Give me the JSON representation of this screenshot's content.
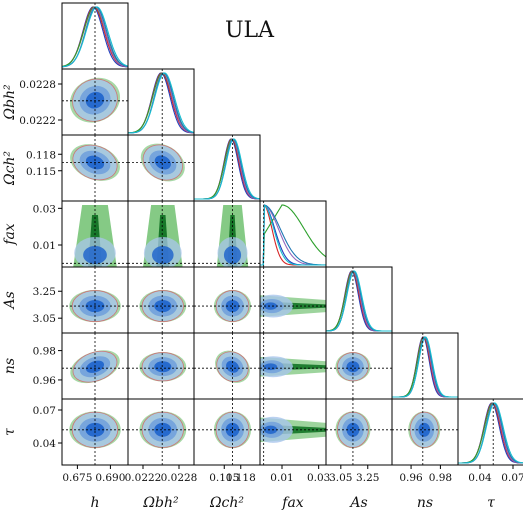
{
  "chart_data": {
    "type": "corner",
    "title": "ULA",
    "parameters": [
      {
        "key": "h",
        "label": "h",
        "range": [
          0.668,
          0.698
        ],
        "ticks": [
          {
            "v": 0.675,
            "t": "0.675"
          },
          {
            "v": 0.69,
            "t": "0.690"
          }
        ],
        "truth": 0.683,
        "mean": 0.683,
        "sd": 0.0045
      },
      {
        "key": "ombh2",
        "label": "Ωbh²",
        "range": [
          0.02195,
          0.02305
        ],
        "ticks": [
          {
            "v": 0.0222,
            "t": "0.0222"
          },
          {
            "v": 0.0228,
            "t": "0.0228"
          }
        ],
        "truth": 0.02252,
        "mean": 0.02253,
        "sd": 0.00015
      },
      {
        "key": "omch2",
        "label": "Ωch²",
        "range": [
          0.1095,
          0.1215
        ],
        "ticks": [
          {
            "v": 0.115,
            "t": "0.115"
          },
          {
            "v": 0.118,
            "t": "0.118"
          }
        ],
        "truth": 0.1165,
        "mean": 0.1165,
        "sd": 0.0013
      },
      {
        "key": "fax",
        "label": "fax",
        "range": [
          -0.002,
          0.034
        ],
        "ticks": [
          {
            "v": 0.01,
            "t": "0.01"
          },
          {
            "v": 0.03,
            "t": "0.03"
          }
        ],
        "truth": 0.0,
        "mean": 0.004,
        "sd": 0.006
      },
      {
        "key": "As",
        "label": "As",
        "range": [
          2.94,
          3.43
        ],
        "ticks": [
          {
            "v": 3.05,
            "t": "3.05"
          },
          {
            "v": 3.25,
            "t": "3.25"
          }
        ],
        "truth": 3.14,
        "mean": 3.14,
        "sd": 0.05
      },
      {
        "key": "ns",
        "label": "ns",
        "range": [
          0.947,
          0.992
        ],
        "ticks": [
          {
            "v": 0.96,
            "t": "0.96"
          },
          {
            "v": 0.98,
            "t": "0.98"
          }
        ],
        "truth": 0.968,
        "mean": 0.969,
        "sd": 0.0042
      },
      {
        "key": "tau",
        "label": "τ",
        "range": [
          0.02,
          0.08
        ],
        "ticks": [
          {
            "v": 0.04,
            "t": "0.04"
          },
          {
            "v": 0.07,
            "t": "0.07"
          }
        ],
        "truth": 0.052,
        "mean": 0.052,
        "sd": 0.007
      }
    ],
    "y_tick_labels": {
      "ombh2": [
        {
          "v": 0.0228,
          "t": "0.0228"
        },
        {
          "v": 0.0222,
          "t": "0.0222"
        }
      ],
      "omch2": [
        {
          "v": 0.118,
          "t": "0.118"
        },
        {
          "v": 0.115,
          "t": "0.115"
        }
      ],
      "fax": [
        {
          "v": 0.03,
          "t": "0.03"
        },
        {
          "v": 0.01,
          "t": "0.01"
        }
      ],
      "As": [
        {
          "v": 3.25,
          "t": "3.25"
        },
        {
          "v": 3.05,
          "t": "3.05"
        }
      ],
      "ns": [
        {
          "v": 0.98,
          "t": "0.98"
        },
        {
          "v": 0.96,
          "t": "0.96"
        }
      ],
      "tau": [
        {
          "v": 0.07,
          "t": "0.07"
        },
        {
          "v": 0.04,
          "t": "0.04"
        }
      ]
    },
    "series_colors": [
      "#1f3fbf",
      "#d62728",
      "#2ca02c",
      "#9467bd",
      "#1f77b4",
      "#17becf"
    ],
    "fill_colors": {
      "blue_outer": "#a9c6ec",
      "blue_mid": "#6f9fdc",
      "blue_inner": "#2266cc",
      "green_outer": "#5cb85c",
      "green_inner": "#0b6e1f"
    },
    "grid": false,
    "legend": "none",
    "truth_line_style": "dashed black"
  }
}
